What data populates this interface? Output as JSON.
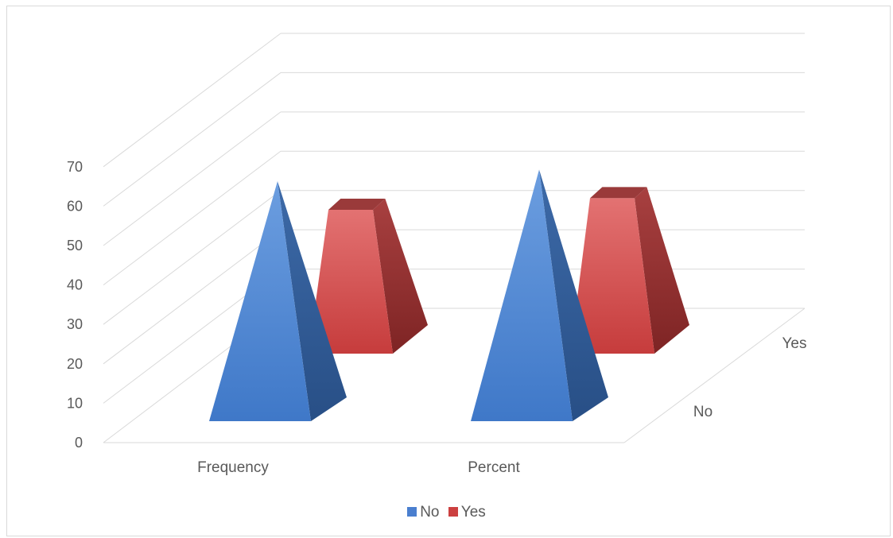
{
  "chart_data": {
    "type": "bar",
    "subtype": "3d-pyramid",
    "title": "",
    "xlabel": "",
    "ylabel": "",
    "categories": [
      "Frequency",
      "Percent"
    ],
    "depth_categories": [
      "No",
      "Yes"
    ],
    "series": [
      {
        "name": "No",
        "values": [
          62,
          65
        ],
        "color": "#4a7fcf"
      },
      {
        "name": "Yes",
        "values": [
          37,
          40
        ],
        "color": "#cc4040"
      }
    ],
    "ylim": [
      0,
      70
    ],
    "yticks": [
      0,
      10,
      20,
      30,
      40,
      50,
      60,
      70
    ],
    "grid": true,
    "legend": "bottom"
  }
}
